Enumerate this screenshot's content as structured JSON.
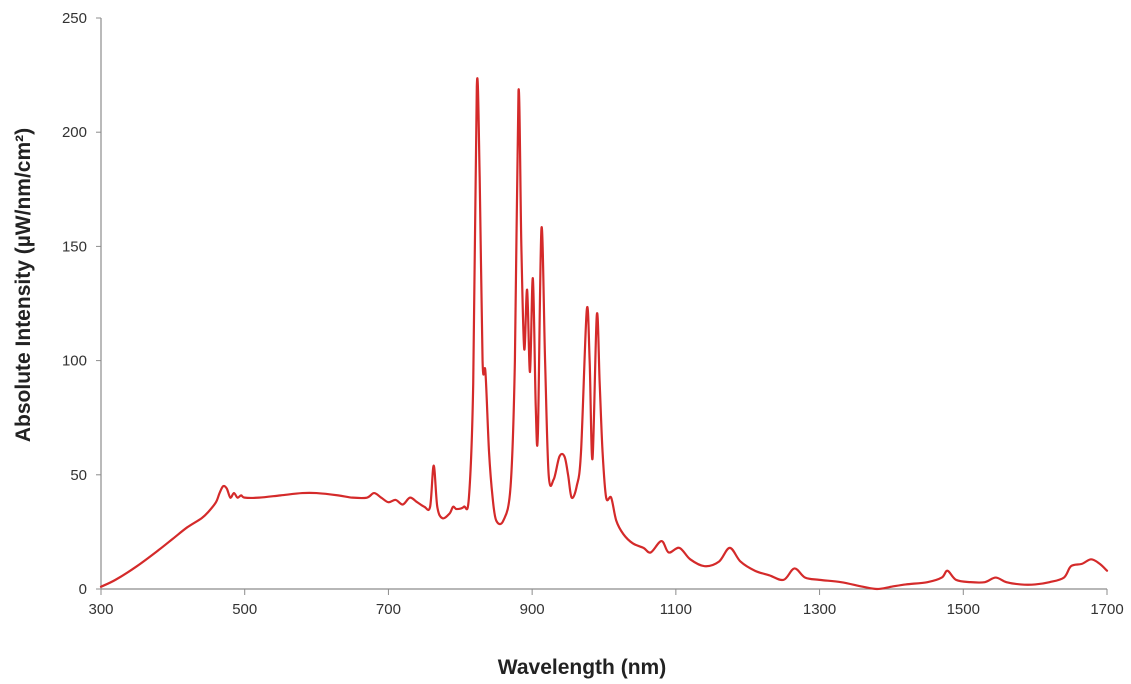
{
  "chart_data": {
    "type": "line",
    "title": "",
    "xlabel": "Wavelength (nm)",
    "ylabel": "Absolute Intensity  (µW/nm/cm²)",
    "xlim": [
      300,
      1700
    ],
    "ylim": [
      0,
      250
    ],
    "x_ticks": [
      300,
      500,
      700,
      900,
      1100,
      1300,
      1500,
      1700
    ],
    "y_ticks": [
      0,
      50,
      100,
      150,
      200,
      250
    ],
    "grid": false,
    "legend": "none",
    "line_color": "#d42a2a",
    "series": [
      {
        "points": [
          [
            300,
            1
          ],
          [
            320,
            4
          ],
          [
            350,
            10
          ],
          [
            380,
            17
          ],
          [
            400,
            22
          ],
          [
            420,
            27
          ],
          [
            440,
            31
          ],
          [
            450,
            34
          ],
          [
            460,
            38
          ],
          [
            465,
            42
          ],
          [
            470,
            45
          ],
          [
            475,
            44
          ],
          [
            480,
            40
          ],
          [
            485,
            42
          ],
          [
            490,
            40
          ],
          [
            495,
            41
          ],
          [
            500,
            40
          ],
          [
            520,
            40
          ],
          [
            550,
            41
          ],
          [
            580,
            42
          ],
          [
            600,
            42
          ],
          [
            630,
            41
          ],
          [
            650,
            40
          ],
          [
            670,
            40
          ],
          [
            680,
            42
          ],
          [
            690,
            40
          ],
          [
            700,
            38
          ],
          [
            710,
            39
          ],
          [
            720,
            37
          ],
          [
            730,
            40
          ],
          [
            740,
            38
          ],
          [
            750,
            36
          ],
          [
            758,
            36
          ],
          [
            763,
            54
          ],
          [
            768,
            36
          ],
          [
            775,
            31
          ],
          [
            785,
            33
          ],
          [
            790,
            36
          ],
          [
            795,
            35
          ],
          [
            805,
            36
          ],
          [
            812,
            40
          ],
          [
            818,
            90
          ],
          [
            823,
            220
          ],
          [
            827,
            180
          ],
          [
            831,
            100
          ],
          [
            835,
            95
          ],
          [
            840,
            60
          ],
          [
            845,
            40
          ],
          [
            850,
            30
          ],
          [
            860,
            30
          ],
          [
            870,
            45
          ],
          [
            876,
            100
          ],
          [
            881,
            218
          ],
          [
            885,
            150
          ],
          [
            889,
            105
          ],
          [
            893,
            131
          ],
          [
            897,
            95
          ],
          [
            901,
            136
          ],
          [
            905,
            80
          ],
          [
            908,
            68
          ],
          [
            913,
            158
          ],
          [
            918,
            100
          ],
          [
            923,
            50
          ],
          [
            930,
            48
          ],
          [
            938,
            58
          ],
          [
            945,
            58
          ],
          [
            950,
            50
          ],
          [
            955,
            40
          ],
          [
            962,
            45
          ],
          [
            968,
            60
          ],
          [
            976,
            122
          ],
          [
            980,
            100
          ],
          [
            984,
            57
          ],
          [
            990,
            120
          ],
          [
            994,
            90
          ],
          [
            998,
            60
          ],
          [
            1003,
            40
          ],
          [
            1010,
            40
          ],
          [
            1017,
            30
          ],
          [
            1027,
            24
          ],
          [
            1040,
            20
          ],
          [
            1055,
            18
          ],
          [
            1065,
            16
          ],
          [
            1080,
            21
          ],
          [
            1090,
            16
          ],
          [
            1105,
            18
          ],
          [
            1120,
            13
          ],
          [
            1140,
            10
          ],
          [
            1160,
            12
          ],
          [
            1175,
            18
          ],
          [
            1190,
            12
          ],
          [
            1210,
            8
          ],
          [
            1230,
            6
          ],
          [
            1250,
            4
          ],
          [
            1265,
            9
          ],
          [
            1280,
            5
          ],
          [
            1300,
            4
          ],
          [
            1330,
            3
          ],
          [
            1360,
            1
          ],
          [
            1380,
            0
          ],
          [
            1400,
            1
          ],
          [
            1420,
            2
          ],
          [
            1450,
            3
          ],
          [
            1470,
            5
          ],
          [
            1478,
            8
          ],
          [
            1490,
            4
          ],
          [
            1510,
            3
          ],
          [
            1530,
            3
          ],
          [
            1545,
            5
          ],
          [
            1560,
            3
          ],
          [
            1580,
            2
          ],
          [
            1600,
            2
          ],
          [
            1620,
            3
          ],
          [
            1640,
            5
          ],
          [
            1650,
            10
          ],
          [
            1665,
            11
          ],
          [
            1678,
            13
          ],
          [
            1690,
            11
          ],
          [
            1700,
            8
          ]
        ]
      }
    ]
  }
}
